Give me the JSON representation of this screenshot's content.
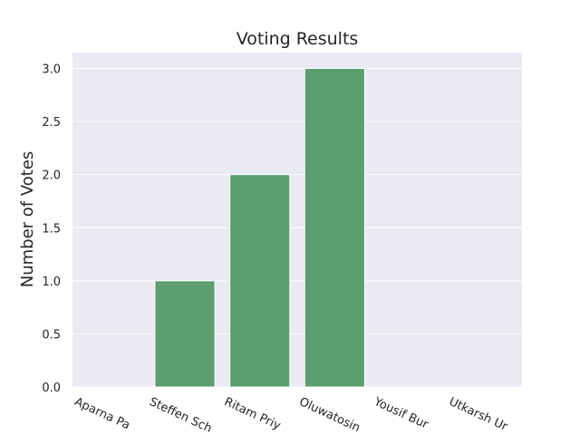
{
  "chart_data": {
    "type": "bar",
    "title": "Voting Results",
    "xlabel": "",
    "ylabel": "Number of Votes",
    "categories": [
      "Aparna Pa",
      "Steffen Sch",
      "Ritam Priy",
      "Oluwatosin",
      "Yousif Bur",
      "Utkarsh Ur"
    ],
    "values": [
      0,
      1,
      2,
      3,
      0,
      0
    ],
    "ylim": [
      0,
      3.0
    ],
    "yticks": [
      "0.0",
      "0.5",
      "1.0",
      "1.5",
      "2.0",
      "2.5",
      "3.0"
    ],
    "grid": true,
    "legend": "none",
    "colors": {
      "bar": "#5d9e6f",
      "background": "#eaeaf2",
      "grid": "#ffffff",
      "text": "#262626"
    }
  }
}
